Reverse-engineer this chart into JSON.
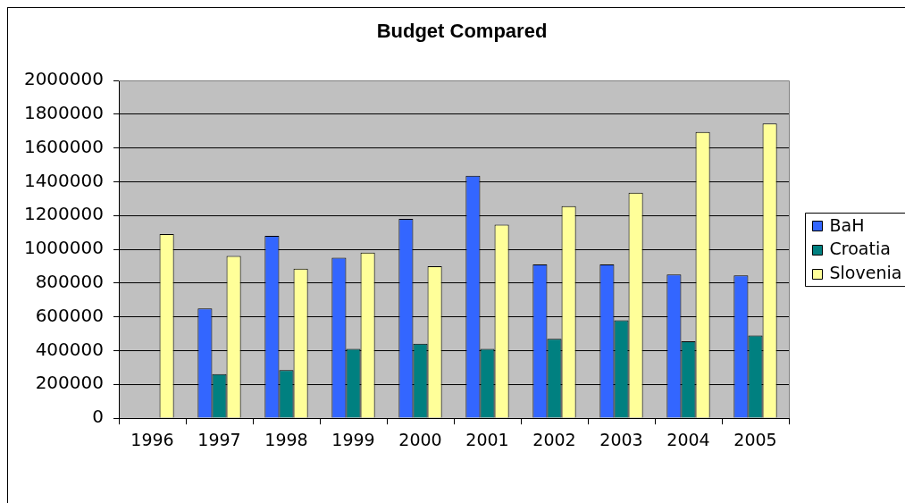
{
  "chart_data": {
    "type": "bar",
    "title": "Budget Compared",
    "categories": [
      "1996",
      "1997",
      "1998",
      "1999",
      "2000",
      "2001",
      "2002",
      "2003",
      "2004",
      "2005"
    ],
    "series": [
      {
        "name": "BaH",
        "color": "#3366ff",
        "values": [
          null,
          650000,
          1080000,
          950000,
          1180000,
          1435000,
          910000,
          910000,
          850000,
          845000
        ]
      },
      {
        "name": "Croatia",
        "color": "#008080",
        "values": [
          null,
          260000,
          285000,
          410000,
          440000,
          410000,
          470000,
          580000,
          455000,
          490000
        ]
      },
      {
        "name": "Slovenia",
        "color": "#ffff99",
        "values": [
          1090000,
          960000,
          885000,
          980000,
          900000,
          1145000,
          1255000,
          1335000,
          1695000,
          1745000
        ]
      }
    ],
    "ylim": [
      0,
      2000000
    ],
    "yticks": [
      0,
      200000,
      400000,
      600000,
      800000,
      1000000,
      1200000,
      1400000,
      1600000,
      1800000,
      2000000
    ],
    "grid": "y",
    "legend": "right"
  }
}
